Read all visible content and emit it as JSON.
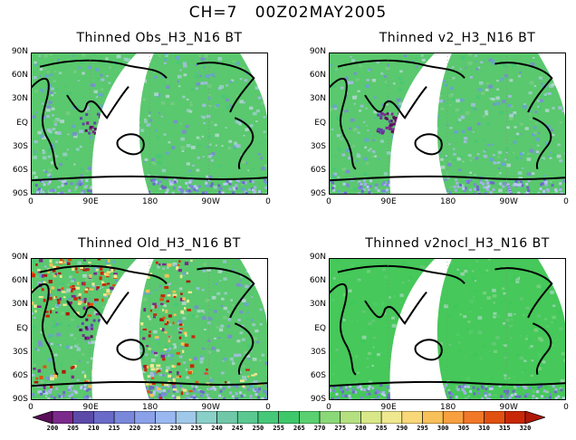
{
  "title": {
    "channel": "CH=7",
    "time": "00Z02MAY2005"
  },
  "panels": [
    {
      "title": "Thinned Obs_H3_N16 BT"
    },
    {
      "title": "Thinned v2_H3_N16 BT"
    },
    {
      "title": "Thinned Old_H3_N16 BT"
    },
    {
      "title": "Thinned v2nocl_H3_N16 BT"
    }
  ],
  "axes": {
    "lat_labels": [
      "90N",
      "60N",
      "30N",
      "EQ",
      "30S",
      "60S",
      "90S"
    ],
    "lon_labels": [
      "0",
      "90E",
      "180",
      "90W",
      "0"
    ]
  },
  "colorbar": {
    "labels": [
      "200",
      "205",
      "210",
      "215",
      "220",
      "225",
      "230",
      "235",
      "240",
      "245",
      "250",
      "255",
      "265",
      "270",
      "275",
      "280",
      "285",
      "290",
      "295",
      "300",
      "305",
      "310",
      "315",
      "320"
    ],
    "colors": [
      "#5a0f5a",
      "#7b2a8c",
      "#5b4aa8",
      "#6a6ac8",
      "#7a88dc",
      "#8aa0e8",
      "#9ab8f0",
      "#a0c8e8",
      "#88d0c8",
      "#70c8a8",
      "#5ac890",
      "#46c878",
      "#3ec86a",
      "#5ad070",
      "#8ad878",
      "#b4e080",
      "#d8e888",
      "#f0e890",
      "#f8d878",
      "#f8c058",
      "#f8a040",
      "#f07828",
      "#e05010",
      "#c82808",
      "#b01808"
    ]
  }
}
